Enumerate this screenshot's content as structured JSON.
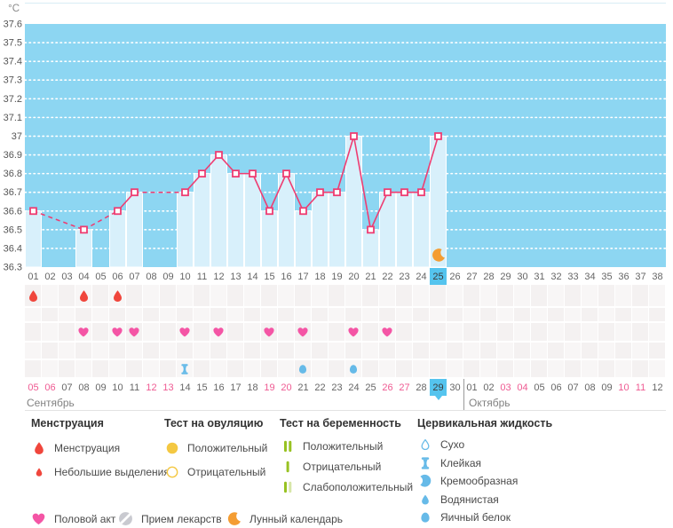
{
  "axis": {
    "unit": "°C",
    "ticks": [
      "37.6",
      "37.5",
      "37.4",
      "37.3",
      "37.2",
      "37.1",
      "37",
      "36.9",
      "36.8",
      "36.7",
      "36.6",
      "36.5",
      "36.4",
      "36.3"
    ],
    "min": 36.3,
    "max": 37.6
  },
  "chart_data": {
    "type": "line",
    "ylabel": "°C",
    "ylim": [
      36.3,
      37.6
    ],
    "x_days_total": 38,
    "grid": "horizontal-dotted",
    "series": [
      {
        "name": "basal-temperature",
        "points": [
          {
            "day": 1,
            "temp": 36.6
          },
          {
            "day": 4,
            "temp": 36.5
          },
          {
            "day": 6,
            "temp": 36.6
          },
          {
            "day": 7,
            "temp": 36.7
          },
          {
            "day": 10,
            "temp": 36.7
          },
          {
            "day": 11,
            "temp": 36.8
          },
          {
            "day": 12,
            "temp": 36.9
          },
          {
            "day": 13,
            "temp": 36.8
          },
          {
            "day": 14,
            "temp": 36.8
          },
          {
            "day": 15,
            "temp": 36.6
          },
          {
            "day": 16,
            "temp": 36.8
          },
          {
            "day": 17,
            "temp": 36.6
          },
          {
            "day": 18,
            "temp": 36.7
          },
          {
            "day": 19,
            "temp": 36.7
          },
          {
            "day": 20,
            "temp": 37.0
          },
          {
            "day": 21,
            "temp": 36.5
          },
          {
            "day": 22,
            "temp": 36.7
          },
          {
            "day": 23,
            "temp": 36.7
          },
          {
            "day": 24,
            "temp": 36.7
          },
          {
            "day": 25,
            "temp": 37.0
          }
        ]
      }
    ]
  },
  "cycle_days": [
    "01",
    "02",
    "03",
    "04",
    "05",
    "06",
    "07",
    "08",
    "09",
    "10",
    "11",
    "12",
    "13",
    "14",
    "15",
    "16",
    "17",
    "18",
    "19",
    "20",
    "21",
    "22",
    "23",
    "24",
    "25",
    "26",
    "27",
    "28",
    "29",
    "30",
    "31",
    "32",
    "33",
    "34",
    "35",
    "36",
    "37",
    "38"
  ],
  "selected": {
    "cycle_day": "25",
    "date": "29"
  },
  "events": {
    "menstruation_days": [
      1,
      4,
      6
    ],
    "intercourse_days": [
      4,
      6,
      7,
      10,
      12,
      15,
      17,
      20,
      22
    ],
    "cervical_entries": [
      {
        "day": 10,
        "type": "Клейкая",
        "icon": "spool-blue"
      },
      {
        "day": 17,
        "type": "Яичный белок",
        "icon": "egg-blue"
      },
      {
        "day": 20,
        "type": "Яичный белок",
        "icon": "egg-blue"
      }
    ],
    "lunar_calendar_day": 25
  },
  "calendar": {
    "september": {
      "label": "Сентябрь",
      "dates": [
        "05",
        "06",
        "07",
        "08",
        "09",
        "10",
        "11",
        "12",
        "13",
        "14",
        "15",
        "16",
        "17",
        "18",
        "19",
        "20",
        "21",
        "22",
        "23",
        "24",
        "25",
        "26",
        "27",
        "28",
        "29",
        "30"
      ],
      "weekend": [
        "05",
        "06",
        "12",
        "13",
        "19",
        "20",
        "26",
        "27"
      ],
      "today": "29"
    },
    "october": {
      "label": "Октябрь",
      "dates": [
        "01",
        "02",
        "03",
        "04",
        "05",
        "06",
        "07",
        "08",
        "09",
        "10",
        "11",
        "12"
      ],
      "weekend": [
        "03",
        "04",
        "10",
        "11"
      ]
    }
  },
  "legend": {
    "menstruation": {
      "title": "Менструация",
      "items": [
        {
          "icon": "drop-red",
          "label": "Менструация"
        },
        {
          "icon": "drop-red-small",
          "label": "Небольшие выделения"
        }
      ]
    },
    "ovulation_test": {
      "title": "Тест на овуляцию",
      "items": [
        {
          "icon": "circle-yellow-filled",
          "label": "Положительный"
        },
        {
          "icon": "circle-yellow-outline",
          "label": "Отрицательный"
        }
      ]
    },
    "pregnancy_test": {
      "title": "Тест на беременность",
      "items": [
        {
          "icon": "preg-positive",
          "label": "Положительный"
        },
        {
          "icon": "preg-negative",
          "label": "Отрицательный"
        },
        {
          "icon": "preg-weak",
          "label": "Слабоположительный"
        }
      ]
    },
    "cervical_fluid": {
      "title": "Цервикальная жидкость",
      "items": [
        {
          "icon": "drop-blue-outline",
          "label": "Сухо"
        },
        {
          "icon": "spool-blue",
          "label": "Клейкая"
        },
        {
          "icon": "comma-blue",
          "label": "Кремообразная"
        },
        {
          "icon": "drop-blue",
          "label": "Водянистая"
        },
        {
          "icon": "egg-blue",
          "label": "Яичный белок"
        }
      ]
    },
    "extra": [
      {
        "icon": "heart-pink",
        "label": "Половой акт"
      },
      {
        "icon": "pill-gray",
        "label": "Прием лекарств"
      },
      {
        "icon": "moon-orange",
        "label": "Лунный календарь"
      }
    ]
  },
  "colors": {
    "plot_bg": "#8dd6f2",
    "plot_top_border": "#d8edf5",
    "bar_fill": "#d8f0fb",
    "line_pink": "#ee3d72",
    "selected_day_bg": "#55c4ee",
    "menstruation_red": "#f0463c",
    "heart_pink": "#f455a5",
    "cervical_blue": "#66bae8",
    "moon_orange": "#f49d33",
    "ovulation_yellow": "#f4c842",
    "pregnancy_green": "#98c222",
    "pregnancy_green_pale": "#d7e6a8",
    "pill_gray": "#c9cad0",
    "weekend_pink": "#ef5a92",
    "axis_text": "#555555",
    "day_text": "#666666"
  }
}
